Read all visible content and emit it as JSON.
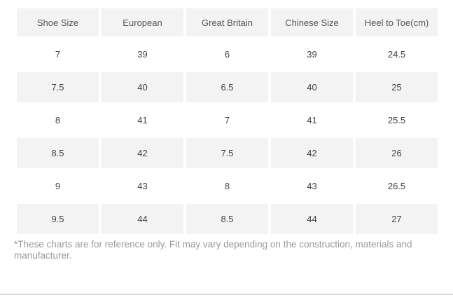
{
  "table": {
    "columns": [
      "Shoe Size",
      "European",
      "Great Britain",
      "Chinese Size",
      "Heel to Toe(cm)"
    ],
    "rows": [
      [
        "7",
        "39",
        "6",
        "39",
        "24.5"
      ],
      [
        "7.5",
        "40",
        "6.5",
        "40",
        "25"
      ],
      [
        "8",
        "41",
        "7",
        "41",
        "25.5"
      ],
      [
        "8.5",
        "42",
        "7.5",
        "42",
        "26"
      ],
      [
        "9",
        "43",
        "8",
        "43",
        "26.5"
      ],
      [
        "9.5",
        "44",
        "8.5",
        "44",
        "27"
      ]
    ]
  },
  "footnote": {
    "full_text": "*These charts are for reference only. Fit may vary depending on the construction, materials and manufacturer.",
    "lines": [
      "*These charts are for reference only. Fit may vary depending on the construction, materials and",
      "manufacturer."
    ]
  },
  "colors": {
    "cell_bg": "#f3f3f3",
    "header_text": "#555555",
    "cell_text": "#444444",
    "footnote_text": "#9a9a9a",
    "divider": "#d9d9d9",
    "page_bg": "#ffffff"
  }
}
